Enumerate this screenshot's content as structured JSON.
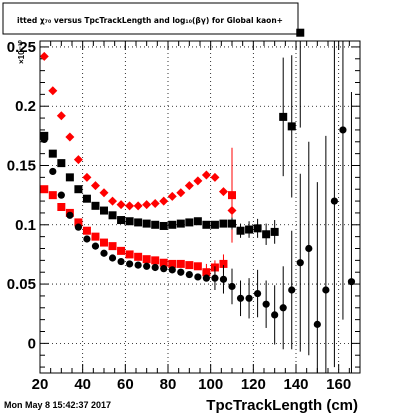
{
  "chart_data": {
    "type": "scatter",
    "title": "itted  χ₇₀  versus TpcTrackLength and log₁₀(βγ) for Global kaon+",
    "xlabel": "TpcTrackLength (cm)",
    "ylabel": "",
    "y_multiplier_label": "×10⁻³⁰",
    "xlim": [
      20,
      170
    ],
    "ylim": [
      -0.025,
      0.255
    ],
    "x_ticks": [
      20,
      40,
      60,
      80,
      100,
      120,
      140,
      160
    ],
    "x_tick_labels": [
      "20",
      "40",
      "60",
      "80",
      "100",
      "120",
      "140",
      "160"
    ],
    "y_ticks": [
      0,
      0.05,
      0.1,
      0.15,
      0.2,
      0.25
    ],
    "y_tick_labels": [
      "0",
      "0.05",
      "0.1",
      "0.15",
      "0.2",
      "0.25"
    ],
    "grid": true,
    "legend": "none",
    "series": [
      {
        "marker": "diamond",
        "color": "#ff0000",
        "points": [
          [
            22,
            0.242
          ],
          [
            26,
            0.213
          ],
          [
            30,
            0.192
          ],
          [
            34,
            0.174
          ],
          [
            38,
            0.155
          ],
          [
            42,
            0.14
          ],
          [
            46,
            0.133
          ],
          [
            50,
            0.127
          ],
          [
            54,
            0.12
          ],
          [
            58,
            0.117
          ],
          [
            62,
            0.116
          ],
          [
            66,
            0.116
          ],
          [
            70,
            0.117
          ],
          [
            74,
            0.118
          ],
          [
            78,
            0.12
          ],
          [
            82,
            0.124
          ],
          [
            86,
            0.127
          ],
          [
            90,
            0.133
          ],
          [
            94,
            0.137
          ],
          [
            98,
            0.142
          ],
          [
            102,
            0.14
          ],
          [
            106,
            0.128
          ],
          [
            110,
            0.112
          ]
        ],
        "err": [
          0,
          0,
          0,
          0,
          0,
          0,
          0,
          0,
          0,
          0,
          0,
          0,
          0,
          0,
          0,
          0,
          0,
          0,
          0,
          0,
          0,
          0,
          0.02
        ]
      },
      {
        "marker": "square",
        "color": "#ff0000",
        "points": [
          [
            22,
            0.13
          ],
          [
            26,
            0.125
          ],
          [
            30,
            0.115
          ],
          [
            34,
            0.11
          ],
          [
            38,
            0.102
          ],
          [
            42,
            0.095
          ],
          [
            46,
            0.09
          ],
          [
            50,
            0.085
          ],
          [
            54,
            0.082
          ],
          [
            58,
            0.078
          ],
          [
            62,
            0.075
          ],
          [
            66,
            0.073
          ],
          [
            70,
            0.071
          ],
          [
            74,
            0.07
          ],
          [
            78,
            0.068
          ],
          [
            82,
            0.067
          ],
          [
            86,
            0.067
          ],
          [
            90,
            0.066
          ],
          [
            94,
            0.065
          ],
          [
            98,
            0.06
          ],
          [
            102,
            0.064
          ],
          [
            106,
            0.067
          ],
          [
            110,
            0.125
          ]
        ],
        "err": [
          0,
          0,
          0,
          0,
          0,
          0,
          0,
          0,
          0,
          0,
          0,
          0,
          0,
          0,
          0,
          0,
          0,
          0,
          0,
          0.007,
          0.006,
          0.008,
          0.04
        ]
      },
      {
        "marker": "square",
        "color": "#000000",
        "points": [
          [
            22,
            0.175
          ],
          [
            26,
            0.16
          ],
          [
            30,
            0.152
          ],
          [
            34,
            0.14
          ],
          [
            38,
            0.13
          ],
          [
            42,
            0.122
          ],
          [
            46,
            0.116
          ],
          [
            50,
            0.112
          ],
          [
            54,
            0.108
          ],
          [
            58,
            0.104
          ],
          [
            62,
            0.103
          ],
          [
            66,
            0.102
          ],
          [
            70,
            0.101
          ],
          [
            74,
            0.1
          ],
          [
            78,
            0.099
          ],
          [
            82,
            0.1
          ],
          [
            86,
            0.101
          ],
          [
            90,
            0.102
          ],
          [
            94,
            0.103
          ],
          [
            98,
            0.1
          ],
          [
            102,
            0.1
          ],
          [
            106,
            0.101
          ],
          [
            110,
            0.101
          ],
          [
            114,
            0.095
          ],
          [
            118,
            0.096
          ],
          [
            122,
            0.097
          ],
          [
            126,
            0.092
          ],
          [
            130,
            0.094
          ],
          [
            134,
            0.191
          ],
          [
            138,
            0.183
          ],
          [
            142,
            0.262
          ]
        ],
        "err": [
          0,
          0,
          0,
          0,
          0,
          0,
          0,
          0,
          0,
          0,
          0,
          0,
          0,
          0,
          0,
          0,
          0,
          0,
          0,
          0,
          0,
          0,
          0.005,
          0.006,
          0.007,
          0.008,
          0.009,
          0.01,
          0.05,
          0.06,
          0.08
        ]
      },
      {
        "marker": "circle",
        "color": "#000000",
        "points": [
          [
            22,
            0.172
          ],
          [
            26,
            0.145
          ],
          [
            30,
            0.125
          ],
          [
            34,
            0.108
          ],
          [
            38,
            0.098
          ],
          [
            42,
            0.088
          ],
          [
            46,
            0.082
          ],
          [
            50,
            0.076
          ],
          [
            54,
            0.072
          ],
          [
            58,
            0.069
          ],
          [
            62,
            0.067
          ],
          [
            66,
            0.066
          ],
          [
            70,
            0.065
          ],
          [
            74,
            0.064
          ],
          [
            78,
            0.063
          ],
          [
            82,
            0.062
          ],
          [
            86,
            0.06
          ],
          [
            90,
            0.058
          ],
          [
            94,
            0.056
          ],
          [
            98,
            0.055
          ],
          [
            102,
            0.055
          ],
          [
            106,
            0.054
          ],
          [
            110,
            0.048
          ],
          [
            114,
            0.038
          ],
          [
            118,
            0.038
          ],
          [
            122,
            0.042
          ],
          [
            126,
            0.033
          ],
          [
            130,
            0.024
          ],
          [
            134,
            0.03
          ],
          [
            138,
            0.045
          ],
          [
            142,
            0.068
          ],
          [
            146,
            0.08
          ],
          [
            150,
            0.016
          ],
          [
            154,
            0.045
          ],
          [
            158,
            0.12
          ],
          [
            162,
            0.18
          ],
          [
            166,
            0.052
          ]
        ],
        "err": [
          0,
          0,
          0,
          0,
          0,
          0,
          0,
          0,
          0,
          0,
          0,
          0,
          0,
          0,
          0,
          0,
          0,
          0,
          0,
          0,
          0.01,
          0.012,
          0.015,
          0.015,
          0.017,
          0.02,
          0.02,
          0.025,
          0.035,
          0.05,
          0.075,
          0.09,
          0.12,
          0.13,
          0.14,
          0.16,
          0.16
        ]
      }
    ]
  },
  "footer": {
    "timestamp": "Mon May  8 15:42:37 2017"
  }
}
